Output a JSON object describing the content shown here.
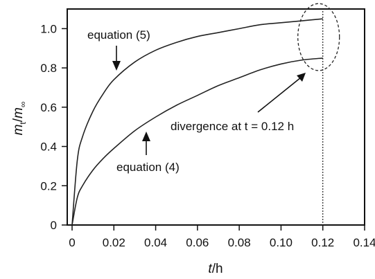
{
  "chart_data": {
    "type": "line",
    "xlabel": {
      "italic": "t",
      "rest": "/h"
    },
    "ylabel": {
      "m": "m",
      "t_sub": "t",
      "slash": "/",
      "m2": "m",
      "inf_sub": "∞"
    },
    "xlim": [
      0,
      0.14
    ],
    "ylim": [
      0,
      1.1
    ],
    "x_ticks": [
      0,
      0.02,
      0.04,
      0.06,
      0.08,
      0.1,
      0.12,
      0.14
    ],
    "x_tick_labels": [
      "0",
      "0.02",
      "0.04",
      "0.06",
      "0.08",
      "0.10",
      "0.12",
      "0.14"
    ],
    "y_ticks": [
      0,
      0.2,
      0.4,
      0.6,
      0.8,
      1.0
    ],
    "y_tick_labels": [
      "0",
      "0.2",
      "0.4",
      "0.6",
      "0.8",
      "1.0"
    ],
    "grid": false,
    "series": [
      {
        "name": "equation (5)",
        "x": [
          0,
          0.0025,
          0.005,
          0.01,
          0.015,
          0.02,
          0.03,
          0.04,
          0.05,
          0.06,
          0.07,
          0.08,
          0.09,
          0.1,
          0.11,
          0.12
        ],
        "y": [
          0,
          0.33,
          0.45,
          0.58,
          0.67,
          0.74,
          0.83,
          0.89,
          0.93,
          0.96,
          0.98,
          1.0,
          1.02,
          1.03,
          1.04,
          1.05
        ]
      },
      {
        "name": "equation (4)",
        "x": [
          0,
          0.0025,
          0.005,
          0.01,
          0.015,
          0.02,
          0.03,
          0.04,
          0.05,
          0.06,
          0.07,
          0.08,
          0.09,
          0.1,
          0.11,
          0.12
        ],
        "y": [
          0,
          0.14,
          0.2,
          0.28,
          0.34,
          0.39,
          0.48,
          0.55,
          0.61,
          0.66,
          0.71,
          0.75,
          0.79,
          0.82,
          0.84,
          0.85
        ]
      }
    ],
    "vertical_line_x": 0.12,
    "annotations": {
      "eq5": "equation (5)",
      "eq4": "equation (4)",
      "divergence": "divergence at t = 0.12 h"
    }
  }
}
